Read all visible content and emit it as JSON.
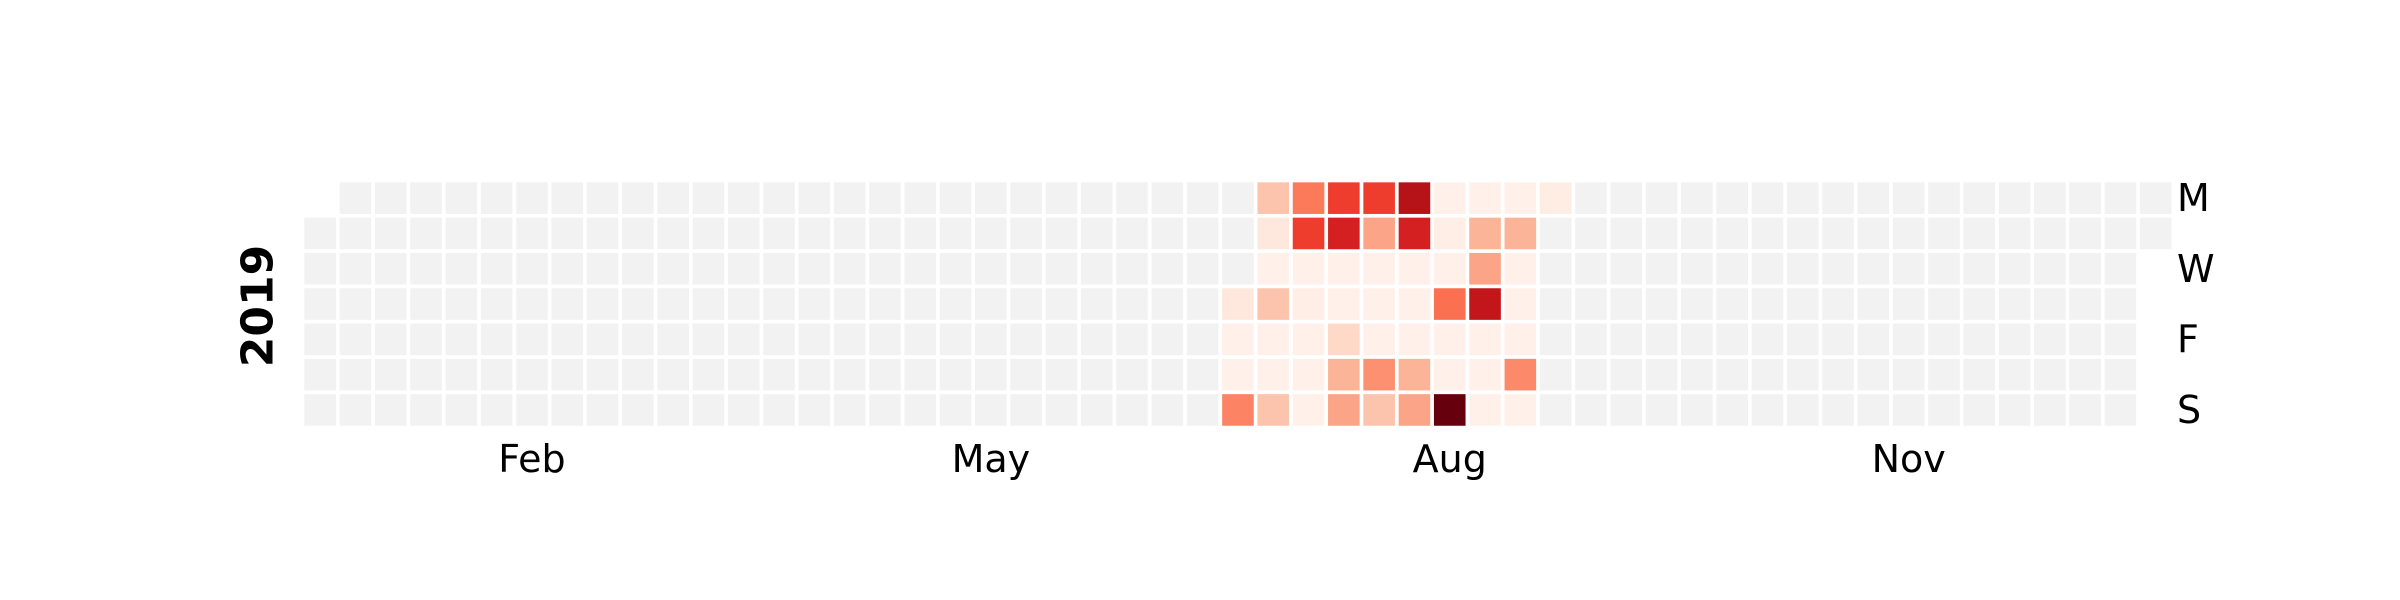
{
  "chart_data": {
    "type": "heatmap",
    "year": "2019",
    "start_date": "2019-01-01",
    "end_date": "2019-12-31",
    "colormap": "Reds",
    "empty_color": "#f2f2f2",
    "cell_border_color": "#ffffff",
    "month_labels": [
      {
        "label": "Feb",
        "month": 2
      },
      {
        "label": "May",
        "month": 5
      },
      {
        "label": "Aug",
        "month": 8
      },
      {
        "label": "Nov",
        "month": 11
      }
    ],
    "weekday_labels": [
      {
        "label": "M",
        "weekday": 0
      },
      {
        "label": "W",
        "weekday": 2
      },
      {
        "label": "F",
        "weekday": 4
      },
      {
        "label": "S",
        "weekday": 6
      }
    ],
    "value_range": [
      0,
      1
    ],
    "weeks": [
      {
        "week": 26,
        "values": [
          null,
          null,
          null,
          0.08,
          0.03,
          0.03,
          0.42
        ]
      },
      {
        "week": 27,
        "values": [
          0.22,
          0.08,
          0.03,
          0.22,
          0.03,
          0.03,
          0.22
        ]
      },
      {
        "week": 28,
        "values": [
          0.45,
          0.62,
          0.03,
          0.04,
          0.03,
          0.03,
          0.03
        ]
      },
      {
        "week": 29,
        "values": [
          0.62,
          0.72,
          0.03,
          0.03,
          0.15,
          0.27,
          0.32
        ]
      },
      {
        "week": 30,
        "values": [
          0.62,
          0.32,
          0.03,
          0.03,
          0.03,
          0.38,
          0.22
        ]
      },
      {
        "week": 31,
        "values": [
          0.82,
          0.72,
          0.03,
          0.03,
          0.03,
          0.27,
          0.32
        ]
      },
      {
        "week": 32,
        "values": [
          0.03,
          0.04,
          0.03,
          0.48,
          0.03,
          0.03,
          1.0
        ]
      },
      {
        "week": 33,
        "values": [
          0.03,
          0.27,
          0.32,
          0.78,
          0.03,
          0.03,
          0.03
        ]
      },
      {
        "week": 34,
        "values": [
          0.03,
          0.27,
          0.03,
          0.03,
          0.03,
          0.4,
          0.03
        ]
      },
      {
        "week": 35,
        "values": [
          0.05,
          null,
          null,
          null,
          null,
          null,
          null
        ]
      }
    ]
  }
}
